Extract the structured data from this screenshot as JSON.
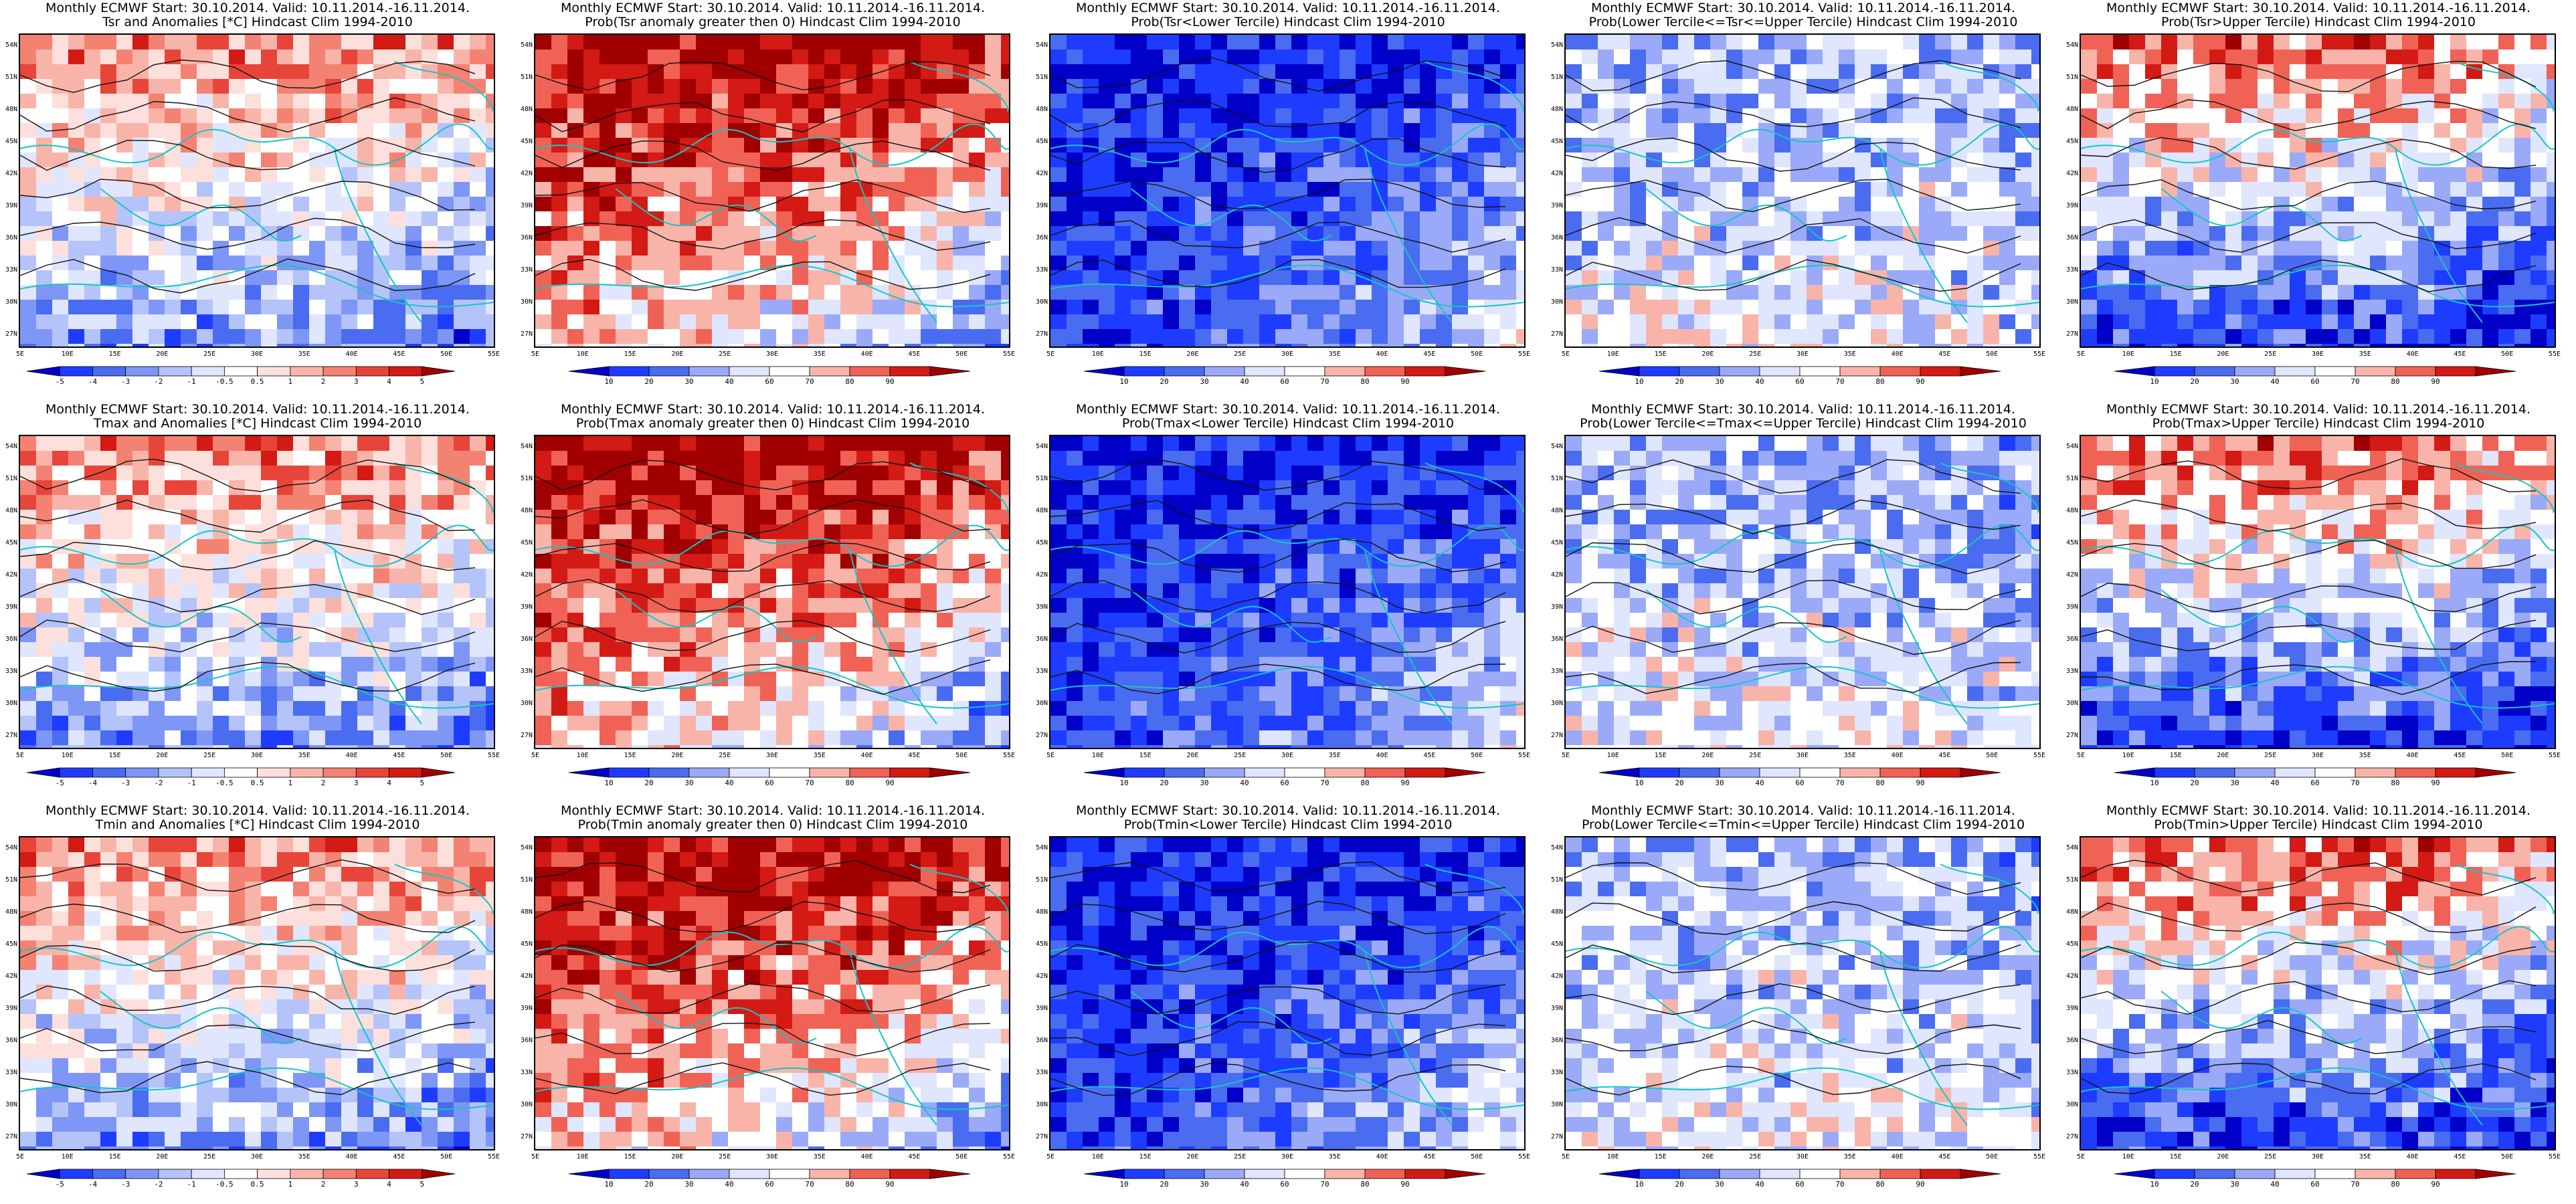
{
  "grid": {
    "rows": 3,
    "cols": 5
  },
  "axes": {
    "lat_labels": [
      "54N",
      "51N",
      "48N",
      "45N",
      "42N",
      "39N",
      "36N",
      "33N",
      "30N",
      "27N"
    ],
    "lon_labels": [
      "5E",
      "10E",
      "15E",
      "20E",
      "25E",
      "30E",
      "35E",
      "40E",
      "45E",
      "50E",
      "55E"
    ]
  },
  "colorbars": {
    "anomaly": {
      "ticks": [
        "-5",
        "-4",
        "-3",
        "-2",
        "-1",
        "-0.5",
        "0.5",
        "1",
        "2",
        "3",
        "4",
        "5"
      ],
      "colors": [
        "#0000c8",
        "#1e3cff",
        "#4a6cf0",
        "#7e96f6",
        "#b4c3fa",
        "#dfe6fd",
        "#ffffff",
        "#fde0dc",
        "#f9b4aa",
        "#f48272",
        "#e8453a",
        "#d31a14",
        "#a00000"
      ]
    },
    "probability": {
      "ticks": [
        "10",
        "20",
        "30",
        "40",
        "60",
        "70",
        "80",
        "90"
      ],
      "colors": [
        "#0000c8",
        "#1e3cff",
        "#4a6cf0",
        "#9aaaf8",
        "#dfe6fd",
        "#ffffff",
        "#f9b4aa",
        "#f06255",
        "#d31a14",
        "#a00000"
      ]
    }
  },
  "panels": [
    {
      "title": "Monthly ECMWF Start: 30.10.2014. Valid: 10.11.2014.-16.11.2014.\nTsr and Anomalies [*C] Hindcast Clim 1994-2010",
      "colorbar": "anomaly",
      "scheme": "warm-north"
    },
    {
      "title": "Monthly ECMWF Start: 30.10.2014. Valid: 10.11.2014.-16.11.2014.\nProb(Tsr anomaly greater then 0) Hindcast Clim 1994-2010",
      "colorbar": "probability",
      "scheme": "hot-northwest"
    },
    {
      "title": "Monthly ECMWF Start: 30.10.2014. Valid: 10.11.2014.-16.11.2014.\nProb(Tsr<Lower Tercile) Hindcast Clim 1994-2010",
      "colorbar": "probability",
      "scheme": "deep-blue"
    },
    {
      "title": "Monthly ECMWF Start: 30.10.2014. Valid: 10.11.2014.-16.11.2014.\nProb(Lower Tercile<=Tsr<=Upper Tercile) Hindcast Clim 1994-2010",
      "colorbar": "probability",
      "scheme": "pale-blue"
    },
    {
      "title": "Monthly ECMWF Start: 30.10.2014. Valid: 10.11.2014.-16.11.2014.\nProb(Tsr>Upper Tercile) Hindcast Clim 1994-2010",
      "colorbar": "probability",
      "scheme": "mixed-red-north"
    },
    {
      "title": "Monthly ECMWF Start: 30.10.2014. Valid: 10.11.2014.-16.11.2014.\nTmax and Anomalies [*C] Hindcast Clim 1994-2010",
      "colorbar": "anomaly",
      "scheme": "warm-north"
    },
    {
      "title": "Monthly ECMWF Start: 30.10.2014. Valid: 10.11.2014.-16.11.2014.\nProb(Tmax anomaly greater then 0) Hindcast Clim 1994-2010",
      "colorbar": "probability",
      "scheme": "hot-northwest"
    },
    {
      "title": "Monthly ECMWF Start: 30.10.2014. Valid: 10.11.2014.-16.11.2014.\nProb(Tmax<Lower Tercile) Hindcast Clim 1994-2010",
      "colorbar": "probability",
      "scheme": "deep-blue"
    },
    {
      "title": "Monthly ECMWF Start: 30.10.2014. Valid: 10.11.2014.-16.11.2014.\nProb(Lower Tercile<=Tmax<=Upper Tercile) Hindcast Clim 1994-2010",
      "colorbar": "probability",
      "scheme": "pale-blue"
    },
    {
      "title": "Monthly ECMWF Start: 30.10.2014. Valid: 10.11.2014.-16.11.2014.\nProb(Tmax>Upper Tercile) Hindcast Clim 1994-2010",
      "colorbar": "probability",
      "scheme": "mixed-red-north"
    },
    {
      "title": "Monthly ECMWF Start: 30.10.2014. Valid: 10.11.2014.-16.11.2014.\nTmin and Anomalies [*C] Hindcast Clim 1994-2010",
      "colorbar": "anomaly",
      "scheme": "warm-north"
    },
    {
      "title": "Monthly ECMWF Start: 30.10.2014. Valid: 10.11.2014.-16.11.2014.\nProb(Tmin anomaly greater then 0) Hindcast Clim 1994-2010",
      "colorbar": "probability",
      "scheme": "hot-northwest"
    },
    {
      "title": "Monthly ECMWF Start: 30.10.2014. Valid: 10.11.2014.-16.11.2014.\nProb(Tmin<Lower Tercile) Hindcast Clim 1994-2010",
      "colorbar": "probability",
      "scheme": "deep-blue"
    },
    {
      "title": "Monthly ECMWF Start: 30.10.2014. Valid: 10.11.2014.-16.11.2014.\nProb(Lower Tercile<=Tmin<=Upper Tercile) Hindcast Clim 1994-2010",
      "colorbar": "probability",
      "scheme": "pale-blue"
    },
    {
      "title": "Monthly ECMWF Start: 30.10.2014. Valid: 10.11.2014.-16.11.2014.\nProb(Tmin>Upper Tercile) Hindcast Clim 1994-2010",
      "colorbar": "probability",
      "scheme": "mixed-red-north"
    }
  ]
}
